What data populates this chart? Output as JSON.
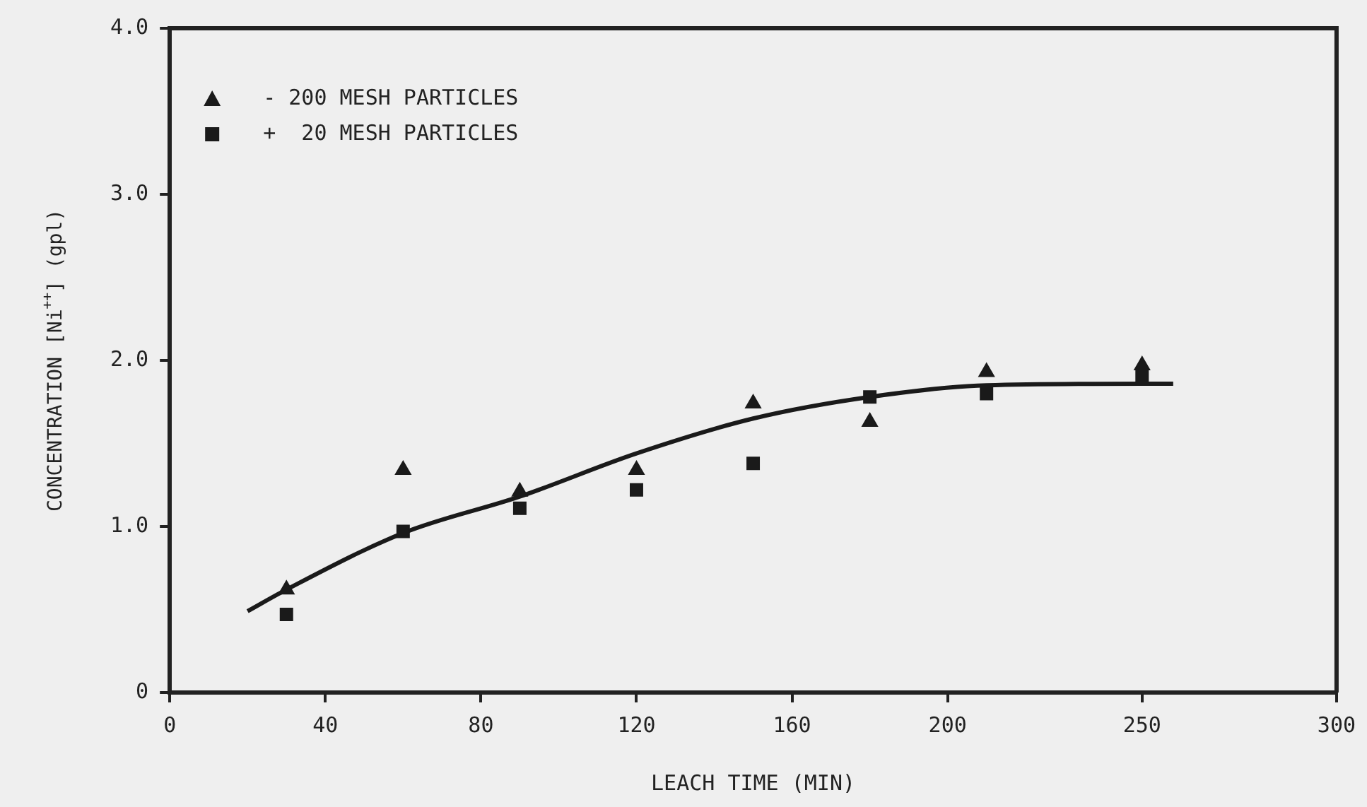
{
  "chart_data": {
    "type": "scatter",
    "xlabel": "LEACH TIME (MIN)",
    "ylabel": "CONCENTRATION [Ni$^{++}$] (gpl)",
    "xlim": [
      0,
      300
    ],
    "xticks": [
      0,
      40,
      80,
      120,
      160,
      200,
      250,
      300
    ],
    "ylim": [
      0,
      4
    ],
    "yticks": [
      {
        "value": 0,
        "label": "0"
      },
      {
        "value": 1,
        "label": "1.0"
      },
      {
        "value": 2,
        "label": "2.0"
      },
      {
        "value": 3,
        "label": "3.0"
      },
      {
        "value": 4,
        "label": "4.0"
      }
    ],
    "grid": false,
    "legend": "top left",
    "series": [
      {
        "name": "- 200 MESH PARTICLES",
        "color": "#1a1a1a",
        "marker": "triangle",
        "x": [
          30,
          60,
          90,
          120,
          150,
          180,
          210,
          250
        ],
        "values": [
          0.62,
          1.34,
          1.21,
          1.34,
          1.74,
          1.63,
          1.93,
          1.97
        ]
      },
      {
        "name": "+  20 MESH PARTICLES",
        "color": "#1a1a1a",
        "marker": "square",
        "x": [
          30,
          60,
          90,
          120,
          150,
          180,
          210,
          250
        ],
        "values": [
          0.47,
          0.97,
          1.11,
          1.22,
          1.38,
          1.78,
          1.8,
          1.91
        ]
      },
      {
        "type": "line",
        "color": "#1a1a1a",
        "marker": "none",
        "line_style": "solid",
        "x": [
          20,
          30,
          60,
          90,
          120,
          150,
          180,
          210,
          250,
          258
        ],
        "values": [
          0.49,
          0.62,
          0.96,
          1.18,
          1.44,
          1.65,
          1.78,
          1.85,
          1.86,
          1.86
        ]
      }
    ]
  }
}
